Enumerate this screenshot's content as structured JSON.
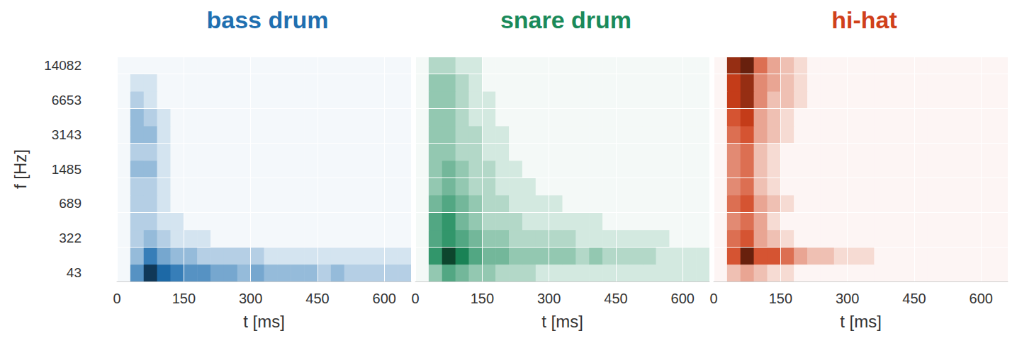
{
  "chart_data": [
    {
      "type": "heatmap",
      "title": "bass drum",
      "color": "#1f6fb0",
      "x_label": "t [ms]",
      "y_label": "f [Hz]",
      "x": [
        0,
        30,
        60,
        90,
        120,
        150,
        180,
        210,
        240,
        270,
        300,
        330,
        360,
        390,
        420,
        450,
        480,
        510,
        540,
        570,
        600,
        630
      ],
      "xlim": [
        0,
        660
      ],
      "xticks": [
        0,
        150,
        300,
        450,
        600
      ],
      "categories": [
        "43",
        null,
        "322",
        null,
        "689",
        null,
        "1485",
        null,
        "3143",
        null,
        "6653",
        null,
        "14082"
      ],
      "zlim": [
        0,
        9
      ],
      "grid": true,
      "values": [
        [
          0,
          5,
          9,
          7,
          6,
          5,
          5,
          4,
          4,
          3,
          4,
          3,
          3,
          3,
          3,
          2,
          3,
          2,
          2,
          2,
          2,
          2
        ],
        [
          0,
          3,
          6,
          4,
          3,
          3,
          2,
          2,
          2,
          2,
          2,
          1,
          1,
          1,
          1,
          1,
          1,
          1,
          1,
          1,
          1,
          1
        ],
        [
          0,
          2,
          3,
          2,
          1,
          1,
          1,
          0,
          0,
          0,
          0,
          0,
          0,
          0,
          0,
          0,
          0,
          0,
          0,
          0,
          0,
          0
        ],
        [
          0,
          2,
          2,
          1,
          1,
          0,
          0,
          0,
          0,
          0,
          0,
          0,
          0,
          0,
          0,
          0,
          0,
          0,
          0,
          0,
          0,
          0
        ],
        [
          0,
          2,
          2,
          1,
          0,
          0,
          0,
          0,
          0,
          0,
          0,
          0,
          0,
          0,
          0,
          0,
          0,
          0,
          0,
          0,
          0,
          0
        ],
        [
          0,
          2,
          2,
          1,
          0,
          0,
          0,
          0,
          0,
          0,
          0,
          0,
          0,
          0,
          0,
          0,
          0,
          0,
          0,
          0,
          0,
          0
        ],
        [
          0,
          3,
          3,
          1,
          0,
          0,
          0,
          0,
          0,
          0,
          0,
          0,
          0,
          0,
          0,
          0,
          0,
          0,
          0,
          0,
          0,
          0
        ],
        [
          0,
          2,
          2,
          1,
          0,
          0,
          0,
          0,
          0,
          0,
          0,
          0,
          0,
          0,
          0,
          0,
          0,
          0,
          0,
          0,
          0,
          0
        ],
        [
          0,
          3,
          3,
          1,
          0,
          0,
          0,
          0,
          0,
          0,
          0,
          0,
          0,
          0,
          0,
          0,
          0,
          0,
          0,
          0,
          0,
          0
        ],
        [
          0,
          3,
          2,
          1,
          0,
          0,
          0,
          0,
          0,
          0,
          0,
          0,
          0,
          0,
          0,
          0,
          0,
          0,
          0,
          0,
          0,
          0
        ],
        [
          0,
          2,
          1,
          0,
          0,
          0,
          0,
          0,
          0,
          0,
          0,
          0,
          0,
          0,
          0,
          0,
          0,
          0,
          0,
          0,
          0,
          0
        ],
        [
          0,
          1,
          1,
          0,
          0,
          0,
          0,
          0,
          0,
          0,
          0,
          0,
          0,
          0,
          0,
          0,
          0,
          0,
          0,
          0,
          0,
          0
        ],
        [
          0,
          0,
          0,
          0,
          0,
          0,
          0,
          0,
          0,
          0,
          0,
          0,
          0,
          0,
          0,
          0,
          0,
          0,
          0,
          0,
          0,
          0
        ]
      ]
    },
    {
      "type": "heatmap",
      "title": "snare drum",
      "color": "#1a8a5a",
      "x_label": "t [ms]",
      "tick_labels": "x",
      "x": [
        0,
        30,
        60,
        90,
        120,
        150,
        180,
        210,
        240,
        270,
        300,
        330,
        360,
        390,
        420,
        450,
        480,
        510,
        540,
        570,
        600,
        630
      ],
      "xlim": [
        0,
        660
      ],
      "xticks": [
        0,
        150,
        300,
        450,
        600
      ],
      "categories": [
        "43",
        null,
        "322",
        null,
        "689",
        null,
        "1485",
        null,
        "3143",
        null,
        "6653",
        null,
        "14082"
      ],
      "zlim": [
        0,
        9
      ],
      "grid": true,
      "values": [
        [
          0,
          3,
          5,
          4,
          3,
          3,
          2,
          2,
          2,
          1,
          1,
          1,
          1,
          1,
          1,
          1,
          1,
          1,
          1,
          1,
          1,
          1
        ],
        [
          0,
          6,
          9,
          7,
          5,
          4,
          4,
          3,
          3,
          3,
          3,
          3,
          2,
          3,
          2,
          2,
          2,
          2,
          1,
          1,
          1,
          1
        ],
        [
          0,
          5,
          6,
          5,
          4,
          3,
          3,
          2,
          2,
          2,
          2,
          2,
          1,
          1,
          1,
          1,
          1,
          1,
          1,
          0,
          0,
          0
        ],
        [
          0,
          5,
          6,
          4,
          3,
          2,
          2,
          2,
          1,
          1,
          1,
          1,
          1,
          1,
          0,
          0,
          0,
          0,
          0,
          0,
          0,
          0
        ],
        [
          0,
          4,
          5,
          4,
          3,
          2,
          2,
          1,
          1,
          1,
          1,
          0,
          0,
          0,
          0,
          0,
          0,
          0,
          0,
          0,
          0,
          0
        ],
        [
          0,
          3,
          4,
          3,
          2,
          2,
          1,
          1,
          1,
          0,
          0,
          0,
          0,
          0,
          0,
          0,
          0,
          0,
          0,
          0,
          0,
          0
        ],
        [
          0,
          3,
          4,
          3,
          2,
          2,
          1,
          1,
          0,
          0,
          0,
          0,
          0,
          0,
          0,
          0,
          0,
          0,
          0,
          0,
          0,
          0
        ],
        [
          0,
          3,
          3,
          2,
          2,
          1,
          1,
          0,
          0,
          0,
          0,
          0,
          0,
          0,
          0,
          0,
          0,
          0,
          0,
          0,
          0,
          0
        ],
        [
          0,
          3,
          3,
          2,
          2,
          1,
          1,
          0,
          0,
          0,
          0,
          0,
          0,
          0,
          0,
          0,
          0,
          0,
          0,
          0,
          0,
          0
        ],
        [
          0,
          3,
          3,
          2,
          1,
          1,
          0,
          0,
          0,
          0,
          0,
          0,
          0,
          0,
          0,
          0,
          0,
          0,
          0,
          0,
          0,
          0
        ],
        [
          0,
          3,
          3,
          2,
          1,
          1,
          0,
          0,
          0,
          0,
          0,
          0,
          0,
          0,
          0,
          0,
          0,
          0,
          0,
          0,
          0,
          0
        ],
        [
          0,
          3,
          3,
          2,
          1,
          0,
          0,
          0,
          0,
          0,
          0,
          0,
          0,
          0,
          0,
          0,
          0,
          0,
          0,
          0,
          0,
          0
        ],
        [
          0,
          2,
          2,
          1,
          1,
          0,
          0,
          0,
          0,
          0,
          0,
          0,
          0,
          0,
          0,
          0,
          0,
          0,
          0,
          0,
          0,
          0
        ]
      ]
    },
    {
      "type": "heatmap",
      "title": "hi-hat",
      "color": "#d0401a",
      "x_label": "t [ms]",
      "tick_labels": "x",
      "x": [
        0,
        30,
        60,
        90,
        120,
        150,
        180,
        210,
        240,
        270,
        300,
        330,
        360,
        390,
        420,
        450,
        480,
        510,
        540,
        570,
        600,
        630
      ],
      "xlim": [
        0,
        660
      ],
      "xticks": [
        0,
        150,
        300,
        450,
        600
      ],
      "categories": [
        "43",
        null,
        "322",
        null,
        "689",
        null,
        "1485",
        null,
        "3143",
        null,
        "6653",
        null,
        "14082"
      ],
      "zlim": [
        0,
        9
      ],
      "grid": true,
      "values": [
        [
          0,
          2,
          3,
          2,
          1,
          1,
          0,
          0,
          0,
          0,
          0,
          0,
          0,
          0,
          0,
          0,
          0,
          0,
          0,
          0,
          0,
          0
        ],
        [
          0,
          6,
          9,
          6,
          6,
          5,
          3,
          2,
          2,
          1,
          1,
          1,
          0,
          0,
          0,
          0,
          0,
          0,
          0,
          0,
          0,
          0
        ],
        [
          0,
          5,
          6,
          3,
          2,
          1,
          0,
          0,
          0,
          0,
          0,
          0,
          0,
          0,
          0,
          0,
          0,
          0,
          0,
          0,
          0,
          0
        ],
        [
          0,
          4,
          5,
          3,
          1,
          0,
          0,
          0,
          0,
          0,
          0,
          0,
          0,
          0,
          0,
          0,
          0,
          0,
          0,
          0,
          0,
          0
        ],
        [
          0,
          5,
          6,
          3,
          2,
          1,
          0,
          0,
          0,
          0,
          0,
          0,
          0,
          0,
          0,
          0,
          0,
          0,
          0,
          0,
          0,
          0
        ],
        [
          0,
          4,
          5,
          2,
          1,
          0,
          0,
          0,
          0,
          0,
          0,
          0,
          0,
          0,
          0,
          0,
          0,
          0,
          0,
          0,
          0,
          0
        ],
        [
          0,
          4,
          5,
          2,
          1,
          0,
          0,
          0,
          0,
          0,
          0,
          0,
          0,
          0,
          0,
          0,
          0,
          0,
          0,
          0,
          0,
          0
        ],
        [
          0,
          4,
          5,
          2,
          1,
          0,
          0,
          0,
          0,
          0,
          0,
          0,
          0,
          0,
          0,
          0,
          0,
          0,
          0,
          0,
          0,
          0
        ],
        [
          0,
          5,
          6,
          3,
          2,
          1,
          0,
          0,
          0,
          0,
          0,
          0,
          0,
          0,
          0,
          0,
          0,
          0,
          0,
          0,
          0,
          0
        ],
        [
          0,
          6,
          7,
          3,
          2,
          1,
          0,
          0,
          0,
          0,
          0,
          0,
          0,
          0,
          0,
          0,
          0,
          0,
          0,
          0,
          0,
          0
        ],
        [
          0,
          7,
          8,
          4,
          2,
          2,
          1,
          0,
          0,
          0,
          0,
          0,
          0,
          0,
          0,
          0,
          0,
          0,
          0,
          0,
          0,
          0
        ],
        [
          0,
          7,
          8,
          4,
          3,
          2,
          1,
          0,
          0,
          0,
          0,
          0,
          0,
          0,
          0,
          0,
          0,
          0,
          0,
          0,
          0,
          0
        ],
        [
          0,
          8,
          9,
          5,
          3,
          2,
          1,
          0,
          0,
          0,
          0,
          0,
          0,
          0,
          0,
          0,
          0,
          0,
          0,
          0,
          0,
          0
        ]
      ]
    }
  ]
}
